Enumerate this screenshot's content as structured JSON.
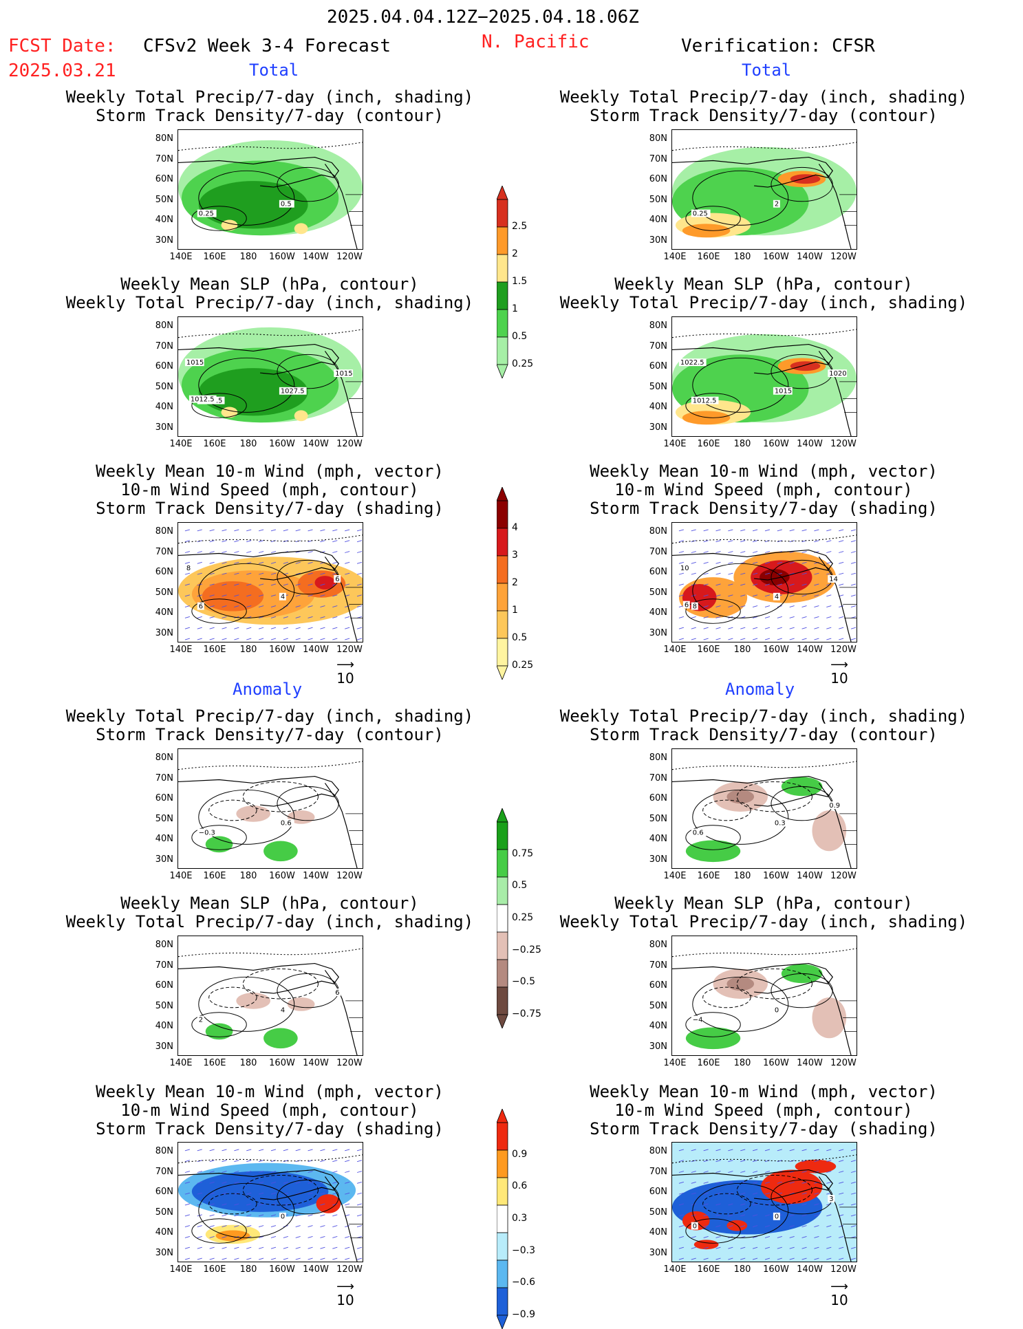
{
  "header": {
    "date_range": "2025.04.04.12Z−2025.04.18.06Z",
    "region": "N. Pacific",
    "fcst_label": "FCST Date:",
    "fcst_date": "2025.03.21",
    "model_title": "CFSv2 Week 3-4 Forecast",
    "verification": "Verification: CFSR"
  },
  "sections": {
    "total": "Total",
    "anomaly": "Anomaly"
  },
  "panel_titles": {
    "precip_track": [
      "Weekly Total Precip/7-day (inch, shading)",
      "Storm Track Density/7-day (contour)"
    ],
    "slp_precip": [
      "Weekly Mean SLP (hPa, contour)",
      "Weekly Total Precip/7-day (inch, shading)"
    ],
    "wind_track": [
      "Weekly Mean 10-m Wind (mph, vector)",
      "10-m Wind Speed (mph, contour)",
      "Storm Track Density/7-day (shading)"
    ]
  },
  "axes": {
    "lat": [
      "80N",
      "70N",
      "60N",
      "50N",
      "40N",
      "30N"
    ],
    "lon": [
      "140E",
      "160E",
      "180",
      "160W",
      "140W",
      "120W"
    ]
  },
  "vector_ref": "10",
  "colorbars": {
    "precip_total": {
      "ticks": [
        "2.5",
        "2",
        "1.5",
        "1",
        "0.5",
        "0.25"
      ],
      "colors": [
        "#d7301f",
        "#fe9a2a",
        "#ffe68c",
        "#1f9e1f",
        "#4ed24e",
        "#a6efa6"
      ]
    },
    "track_total": {
      "ticks": [
        "4",
        "3",
        "2",
        "1",
        "0.5",
        "0.25"
      ],
      "colors": [
        "#8b0000",
        "#d7191c",
        "#f46d20",
        "#fea33a",
        "#fdc75a",
        "#fff4a0"
      ]
    },
    "precip_anom": {
      "ticks": [
        "0.75",
        "0.5",
        "0.25",
        "−0.25",
        "−0.5",
        "−0.75"
      ],
      "colors": [
        "#1aa01a",
        "#46cc46",
        "#a8eca8",
        "#ffffff",
        "#e3c0b6",
        "#b48a80",
        "#6e4a40"
      ]
    },
    "track_anom": {
      "ticks": [
        "0.9",
        "0.6",
        "0.3",
        "−0.3",
        "−0.6",
        "−0.9"
      ],
      "colors": [
        "#ee2a10",
        "#fe9a20",
        "#ffe878",
        "#ffffff",
        "#b8ecfa",
        "#5cb8f0",
        "#1e60d8"
      ]
    }
  },
  "contour_labels": {
    "fc_precip_total": [
      "0.5",
      "0.25"
    ],
    "fc_slp_total": [
      "1027.5",
      "1017.5",
      "1015",
      "1015",
      "1012.5"
    ],
    "fc_wind_total": [
      "4",
      "6",
      "6",
      "8"
    ],
    "vf_precip_total": [
      "2",
      "0.25"
    ],
    "vf_slp_total": [
      "1015",
      "1012.5",
      "1020",
      "1022.5"
    ],
    "vf_wind_total": [
      "4",
      "8",
      "14",
      "10",
      "6"
    ],
    "fc_precip_anom": [
      "0.6",
      "−0.3"
    ],
    "fc_slp_anom": [
      "4",
      "2",
      "6"
    ],
    "fc_wind_anom": [
      "0"
    ],
    "vf_precip_anom": [
      "0.3",
      "0.6",
      "0.9"
    ],
    "vf_slp_anom": [
      "0",
      "−4"
    ],
    "vf_wind_anom": [
      "0",
      "0",
      "3"
    ]
  },
  "colors": {
    "accent_red": "#ff2020",
    "accent_blue": "#1f3fff"
  }
}
